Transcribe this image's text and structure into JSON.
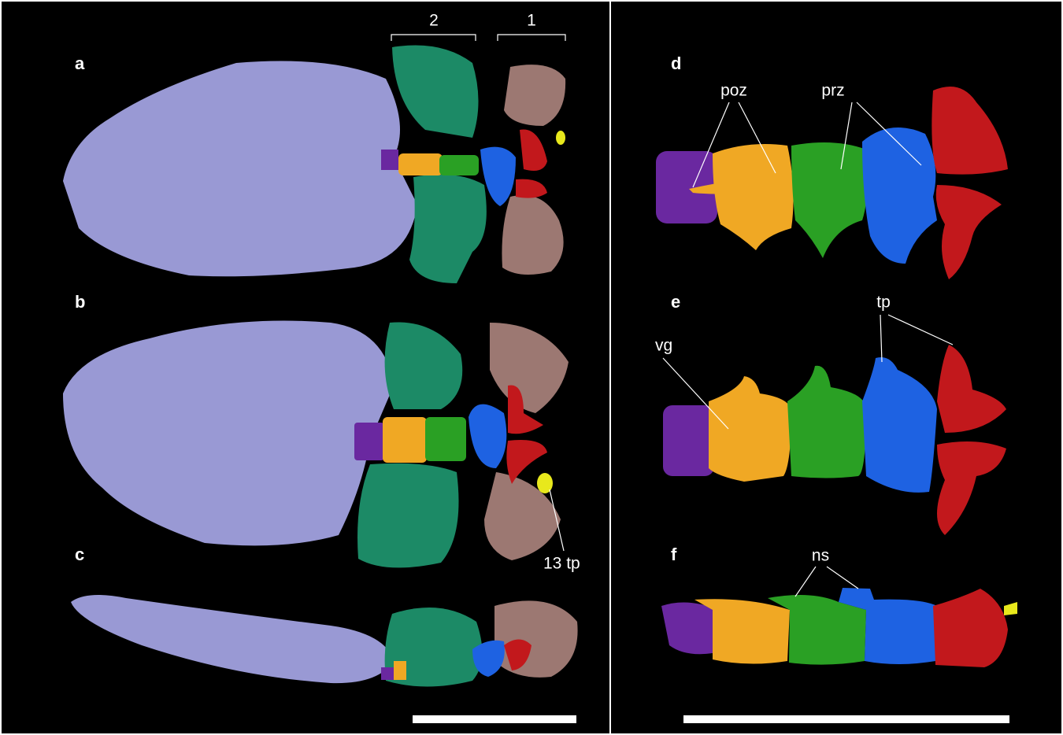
{
  "left_panel": {
    "brackets": [
      "2",
      "1"
    ],
    "views": [
      {
        "label": "a"
      },
      {
        "label": "b",
        "annotations": [
          "13 tp"
        ]
      },
      {
        "label": "c"
      }
    ]
  },
  "right_panel": {
    "views": [
      {
        "label": "d",
        "annotations": [
          "poz",
          "prz"
        ]
      },
      {
        "label": "e",
        "annotations": [
          "vg",
          "tp"
        ]
      },
      {
        "label": "f",
        "annotations": [
          "ns"
        ]
      }
    ]
  }
}
